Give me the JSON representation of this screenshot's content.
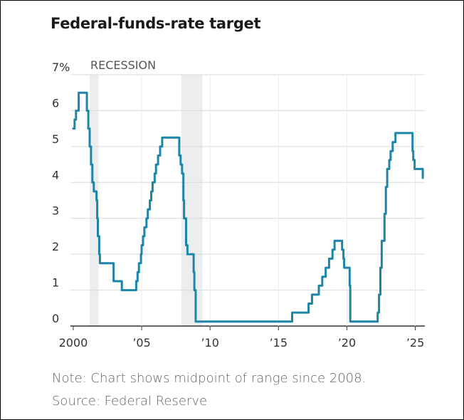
{
  "title": "Federal-funds-rate target",
  "note": "Note: Chart shows midpoint of range since 2008.",
  "source": "Source: Federal Reserve",
  "colors": {
    "line": "#1d86a8",
    "recession": "#ebedef",
    "grid": "#d9d9d9",
    "axis": "#333333",
    "text": "#333333"
  },
  "chart_data": {
    "type": "line",
    "title": "Federal-funds-rate target",
    "xlabel": "",
    "ylabel": "",
    "xlim": [
      1999.9,
      2025.7
    ],
    "ylim": [
      0,
      7
    ],
    "x_ticks": [
      {
        "value": 2000,
        "label": "2000"
      },
      {
        "value": 2005,
        "label": "’05"
      },
      {
        "value": 2010,
        "label": "’10"
      },
      {
        "value": 2015,
        "label": "’15"
      },
      {
        "value": 2020,
        "label": "’20"
      },
      {
        "value": 2025,
        "label": "’25"
      }
    ],
    "y_ticks": [
      {
        "value": 0,
        "label": "0"
      },
      {
        "value": 1,
        "label": "1"
      },
      {
        "value": 2,
        "label": "2"
      },
      {
        "value": 3,
        "label": "3"
      },
      {
        "value": 4,
        "label": "4"
      },
      {
        "value": 5,
        "label": "5"
      },
      {
        "value": 6,
        "label": "6"
      },
      {
        "value": 7,
        "label": "7%"
      }
    ],
    "recession_label": "RECESSION",
    "recessions": [
      {
        "start": 2001.2,
        "end": 2001.85
      },
      {
        "start": 2007.9,
        "end": 2009.45
      }
    ],
    "grid": true,
    "series": [
      {
        "points": [
          [
            2000.0,
            5.5
          ],
          [
            2000.1,
            5.75
          ],
          [
            2000.2,
            6.0
          ],
          [
            2000.4,
            6.5
          ],
          [
            2000.9,
            6.5
          ],
          [
            2001.0,
            6.0
          ],
          [
            2001.1,
            5.5
          ],
          [
            2001.2,
            5.0
          ],
          [
            2001.3,
            4.5
          ],
          [
            2001.4,
            4.0
          ],
          [
            2001.5,
            3.75
          ],
          [
            2001.7,
            3.5
          ],
          [
            2001.75,
            3.0
          ],
          [
            2001.8,
            2.5
          ],
          [
            2001.9,
            2.0
          ],
          [
            2001.95,
            1.75
          ],
          [
            2002.9,
            1.75
          ],
          [
            2002.95,
            1.25
          ],
          [
            2003.5,
            1.25
          ],
          [
            2003.55,
            1.0
          ],
          [
            2004.5,
            1.0
          ],
          [
            2004.6,
            1.25
          ],
          [
            2004.7,
            1.5
          ],
          [
            2004.8,
            1.75
          ],
          [
            2004.95,
            2.0
          ],
          [
            2005.0,
            2.25
          ],
          [
            2005.1,
            2.5
          ],
          [
            2005.2,
            2.75
          ],
          [
            2005.35,
            3.0
          ],
          [
            2005.45,
            3.25
          ],
          [
            2005.6,
            3.5
          ],
          [
            2005.7,
            3.75
          ],
          [
            2005.8,
            4.0
          ],
          [
            2005.95,
            4.25
          ],
          [
            2006.05,
            4.5
          ],
          [
            2006.2,
            4.75
          ],
          [
            2006.35,
            5.0
          ],
          [
            2006.5,
            5.25
          ],
          [
            2007.7,
            5.25
          ],
          [
            2007.75,
            4.75
          ],
          [
            2007.85,
            4.5
          ],
          [
            2007.95,
            4.25
          ],
          [
            2008.05,
            3.5
          ],
          [
            2008.1,
            3.0
          ],
          [
            2008.25,
            2.25
          ],
          [
            2008.35,
            2.0
          ],
          [
            2008.75,
            2.0
          ],
          [
            2008.8,
            1.5
          ],
          [
            2008.85,
            1.0
          ],
          [
            2008.95,
            0.125
          ],
          [
            2015.95,
            0.125
          ],
          [
            2016.0,
            0.375
          ],
          [
            2016.95,
            0.375
          ],
          [
            2017.2,
            0.625
          ],
          [
            2017.45,
            0.875
          ],
          [
            2017.95,
            1.125
          ],
          [
            2018.2,
            1.375
          ],
          [
            2018.45,
            1.625
          ],
          [
            2018.7,
            1.875
          ],
          [
            2018.95,
            2.125
          ],
          [
            2019.1,
            2.375
          ],
          [
            2019.55,
            2.375
          ],
          [
            2019.65,
            2.125
          ],
          [
            2019.75,
            1.875
          ],
          [
            2019.8,
            1.625
          ],
          [
            2020.15,
            1.625
          ],
          [
            2020.2,
            1.125
          ],
          [
            2020.25,
            0.125
          ],
          [
            2022.2,
            0.125
          ],
          [
            2022.25,
            0.375
          ],
          [
            2022.35,
            0.875
          ],
          [
            2022.45,
            1.625
          ],
          [
            2022.55,
            2.375
          ],
          [
            2022.75,
            3.125
          ],
          [
            2022.85,
            3.875
          ],
          [
            2022.95,
            4.375
          ],
          [
            2023.1,
            4.625
          ],
          [
            2023.2,
            4.875
          ],
          [
            2023.35,
            5.125
          ],
          [
            2023.55,
            5.375
          ],
          [
            2024.7,
            5.375
          ],
          [
            2024.8,
            4.875
          ],
          [
            2024.85,
            4.625
          ],
          [
            2024.95,
            4.375
          ],
          [
            2025.5,
            4.375
          ],
          [
            2025.55,
            4.125
          ]
        ]
      }
    ]
  }
}
